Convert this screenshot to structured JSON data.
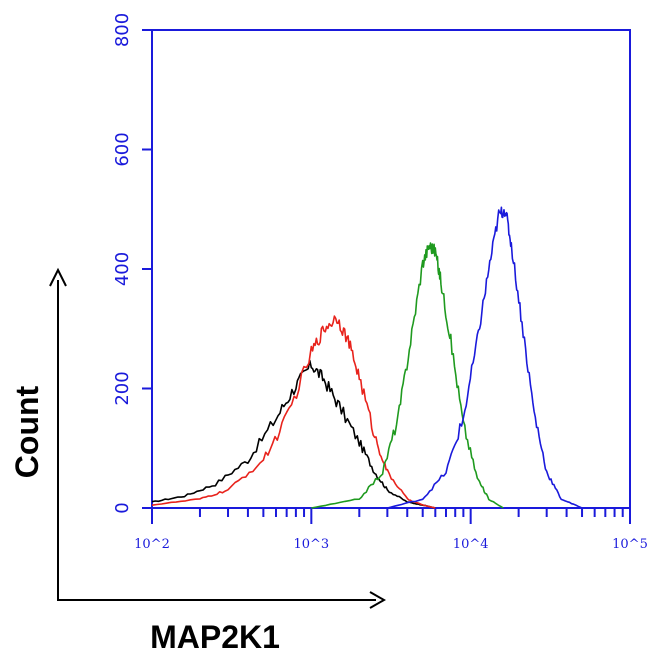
{
  "chart_data": {
    "type": "line",
    "title": "",
    "xlabel": "MAP2K1",
    "ylabel": "Count",
    "xscale": "log",
    "xlim": [
      100,
      100000
    ],
    "ylim": [
      0,
      800
    ],
    "grid": false,
    "x_tick_labels": [
      "10^2",
      "10^3",
      "10^4",
      "10^5"
    ],
    "y_tick_labels": [
      "0",
      "200",
      "400",
      "600",
      "800"
    ],
    "series": [
      {
        "color": "#000000",
        "x": [
          100,
          160,
          250,
          400,
          600,
          800,
          1000,
          1200,
          1500,
          2000,
          2500,
          3000,
          4000,
          5000,
          6000
        ],
        "y": [
          10,
          20,
          40,
          80,
          150,
          205,
          240,
          215,
          170,
          110,
          60,
          30,
          10,
          5,
          0
        ]
      },
      {
        "color": "#e8231c",
        "x": [
          100,
          200,
          300,
          500,
          700,
          1000,
          1200,
          1450,
          1700,
          2000,
          2500,
          3000,
          4000,
          5000,
          6000
        ],
        "y": [
          5,
          15,
          30,
          80,
          150,
          260,
          300,
          320,
          280,
          220,
          120,
          60,
          15,
          5,
          0
        ]
      },
      {
        "color": "#1f9a1f",
        "x": [
          1000,
          2000,
          2800,
          3500,
          4200,
          5000,
          5500,
          6000,
          6500,
          7500,
          9000,
          11000,
          13000,
          16000
        ],
        "y": [
          0,
          15,
          60,
          150,
          280,
          410,
          440,
          430,
          380,
          280,
          140,
          50,
          15,
          0
        ]
      },
      {
        "color": "#1a1adb",
        "x": [
          3000,
          5000,
          7000,
          9000,
          11000,
          13000,
          15000,
          16500,
          18000,
          21000,
          25000,
          30000,
          37000,
          50000
        ],
        "y": [
          0,
          15,
          60,
          150,
          280,
          400,
          490,
          500,
          440,
          310,
          160,
          60,
          15,
          0
        ]
      }
    ]
  }
}
